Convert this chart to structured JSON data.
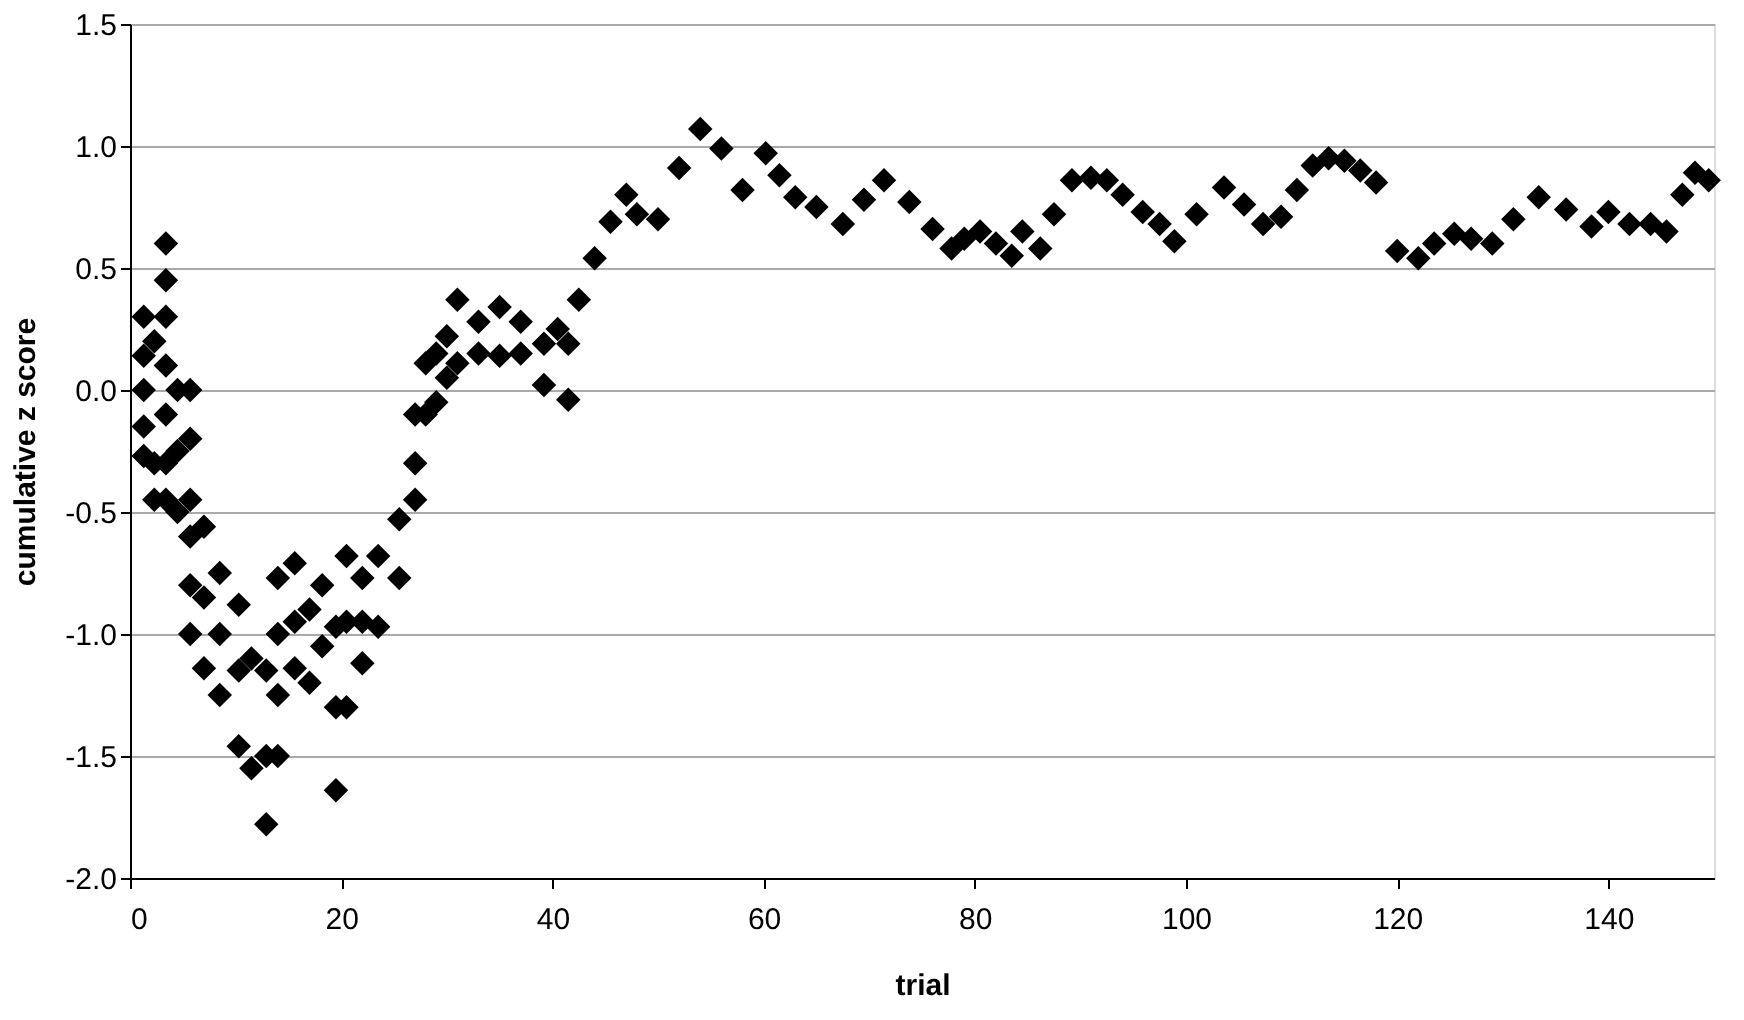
{
  "chart_data": {
    "type": "scatter",
    "xlabel": "trial",
    "ylabel": "cumulative z score",
    "x": [
      1.3,
      1.3,
      1.3,
      1.3,
      1.3,
      2.3,
      2.3,
      2.3,
      3.4,
      3.4,
      3.4,
      3.4,
      3.4,
      3.4,
      3.4,
      4.5,
      4.5,
      4.5,
      5.7,
      5.7,
      5.7,
      5.7,
      5.7,
      5.7,
      7,
      7,
      7,
      8.5,
      8.5,
      8.5,
      10.3,
      10.3,
      10.3,
      11.5,
      11.5,
      12.9,
      12.9,
      12.9,
      14,
      14,
      14,
      14,
      15.6,
      15.6,
      15.6,
      17,
      17,
      18.2,
      18.2,
      19.5,
      19.5,
      19.5,
      20.5,
      20.5,
      20.5,
      22,
      22,
      22,
      23.5,
      23.5,
      25.5,
      25.5,
      27,
      27,
      27,
      28,
      28,
      29,
      29,
      30,
      30,
      31,
      31,
      33,
      33,
      35,
      35,
      37,
      37,
      39.2,
      39.2,
      40.5,
      41.5,
      41.5,
      42.5,
      44,
      45.5,
      47,
      48,
      50,
      52,
      54,
      56,
      58,
      60.2,
      61.5,
      63,
      65,
      67.5,
      69.5,
      71.4,
      73.8,
      76,
      77.8,
      79,
      80.5,
      82,
      83.5,
      84.5,
      86.2,
      87.5,
      89.2,
      91,
      92.5,
      94,
      95.9,
      97.5,
      98.9,
      101,
      103.6,
      105.5,
      107.3,
      109,
      110.5,
      112,
      113.5,
      115,
      116.5,
      118,
      120,
      122,
      123.5,
      125.4,
      127,
      129,
      131,
      133.4,
      136,
      138.4,
      140,
      142,
      144,
      145.5,
      147,
      148.2,
      149.5
    ],
    "series": [
      {
        "color": "#000000",
        "values": [
          0.3,
          0.14,
          0.0,
          -0.15,
          -0.27,
          0.2,
          -0.3,
          -0.45,
          0.6,
          0.45,
          0.3,
          0.1,
          -0.1,
          -0.3,
          -0.45,
          0.0,
          -0.25,
          -0.5,
          0.0,
          -0.2,
          -0.45,
          -0.6,
          -0.8,
          -1.0,
          -0.56,
          -0.85,
          -1.14,
          -0.75,
          -1.0,
          -1.25,
          -0.88,
          -1.15,
          -1.46,
          -1.1,
          -1.55,
          -1.15,
          -1.5,
          -1.78,
          -0.77,
          -1.0,
          -1.25,
          -1.5,
          -0.71,
          -0.95,
          -1.14,
          -0.9,
          -1.2,
          -0.8,
          -1.05,
          -0.97,
          -1.3,
          -1.64,
          -0.68,
          -0.95,
          -1.3,
          -0.77,
          -0.95,
          -1.12,
          -0.68,
          -0.97,
          -0.53,
          -0.77,
          -0.1,
          -0.3,
          -0.45,
          0.11,
          -0.1,
          0.15,
          -0.05,
          0.22,
          0.05,
          0.37,
          0.11,
          0.28,
          0.15,
          0.34,
          0.14,
          0.28,
          0.15,
          0.19,
          0.02,
          0.25,
          -0.04,
          0.19,
          0.37,
          0.54,
          0.69,
          0.8,
          0.72,
          0.7,
          0.91,
          1.07,
          0.99,
          0.82,
          0.97,
          0.88,
          0.79,
          0.75,
          0.68,
          0.78,
          0.86,
          0.77,
          0.66,
          0.58,
          0.62,
          0.65,
          0.6,
          0.55,
          0.65,
          0.58,
          0.72,
          0.86,
          0.87,
          0.86,
          0.8,
          0.73,
          0.68,
          0.61,
          0.72,
          0.83,
          0.76,
          0.68,
          0.71,
          0.82,
          0.92,
          0.95,
          0.94,
          0.9,
          0.85,
          0.57,
          0.54,
          0.6,
          0.64,
          0.62,
          0.6,
          0.7,
          0.79,
          0.74,
          0.67,
          0.73,
          0.68,
          0.68,
          0.65,
          0.8,
          0.89,
          0.86
        ]
      }
    ],
    "xlim": [
      0,
      150
    ],
    "xticks": [
      0,
      20,
      40,
      60,
      80,
      100,
      120,
      140
    ],
    "ylim": [
      -2.0,
      1.5
    ],
    "yticks": [
      {
        "value": -2,
        "label": "-2.0"
      },
      {
        "value": -1.5,
        "label": "-1.5"
      },
      {
        "value": -1,
        "label": "-1.0"
      },
      {
        "value": -0.5,
        "label": "-0.5"
      },
      {
        "value": 0,
        "label": "0.0"
      },
      {
        "value": 0.5,
        "label": "0.5"
      },
      {
        "value": 1,
        "label": "1.0"
      },
      {
        "value": 1.5,
        "label": "1.5"
      }
    ],
    "grid": "y",
    "marker": "diamond"
  }
}
